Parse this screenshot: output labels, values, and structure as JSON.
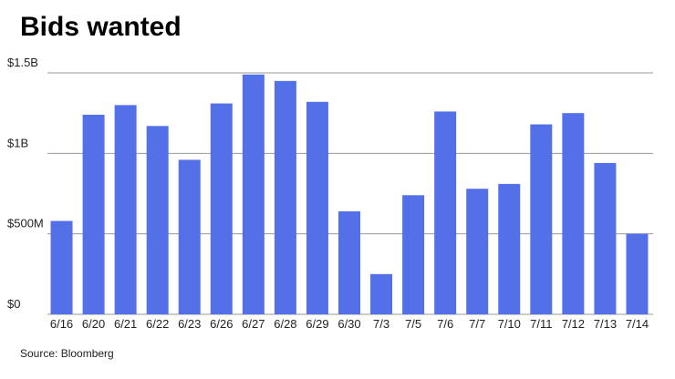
{
  "chart_data": {
    "type": "bar",
    "title": "Bids wanted",
    "source": "Source: Bloomberg",
    "categories": [
      "6/16",
      "6/20",
      "6/21",
      "6/22",
      "6/23",
      "6/26",
      "6/27",
      "6/28",
      "6/29",
      "6/30",
      "7/3",
      "7/5",
      "7/6",
      "7/7",
      "7/10",
      "7/11",
      "7/12",
      "7/13",
      "7/14"
    ],
    "values": [
      0.58,
      1.24,
      1.3,
      1.17,
      0.96,
      1.31,
      1.49,
      1.45,
      1.32,
      0.64,
      0.25,
      0.74,
      1.26,
      0.78,
      0.81,
      1.18,
      1.25,
      0.94,
      0.5
    ],
    "color": "#5470e8",
    "ylim": [
      0,
      1.5
    ],
    "yticks": [
      {
        "value": 0,
        "label": "$0"
      },
      {
        "value": 0.5,
        "label": "$500M"
      },
      {
        "value": 1,
        "label": "$1B"
      },
      {
        "value": 1.5,
        "label": "$1.5B"
      }
    ],
    "grid": true
  }
}
